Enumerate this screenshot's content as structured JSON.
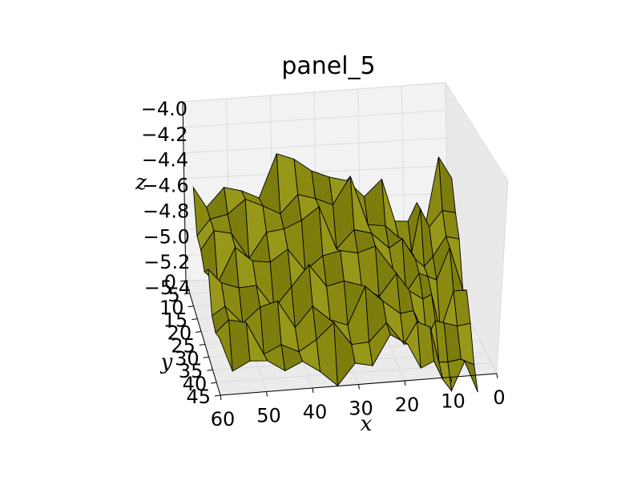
{
  "chart_data": {
    "type": "surface",
    "title": "panel_5",
    "xlabel": "x",
    "ylabel": "y",
    "zlabel": "z",
    "x_ticks": [
      "0",
      "10",
      "20",
      "30",
      "40",
      "50",
      "60"
    ],
    "y_ticks": [
      "0",
      "5",
      "10",
      "15",
      "20",
      "25",
      "30",
      "35",
      "40",
      "45"
    ],
    "z_ticks": [
      "−4.0",
      "−4.2",
      "−4.4",
      "−4.6",
      "−4.8",
      "−5.0",
      "−5.2",
      "−5.4"
    ],
    "xlim": [
      0,
      60
    ],
    "ylim": [
      0,
      45
    ],
    "zlim": [
      -5.4,
      -4.0
    ],
    "grid": true,
    "surface_color": "#8a8a12",
    "edge_color": "#000000",
    "surface_profile": {
      "x": [
        0,
        3,
        6,
        8,
        10,
        13,
        16,
        20,
        24,
        28,
        32,
        36,
        40,
        44,
        48,
        52,
        56,
        59
      ],
      "z_back": [
        -4.62,
        -4.48,
        -4.78,
        -4.72,
        -4.88,
        -4.85,
        -4.7,
        -4.66,
        -4.46,
        -4.55,
        -4.4,
        -4.46,
        -4.45,
        -4.58,
        -4.62,
        -4.55,
        -4.7,
        -4.75
      ],
      "z_front": [
        -5.5,
        -5.46,
        -5.52,
        -5.42,
        -5.3,
        -5.22,
        -5.24,
        -5.18,
        -5.28,
        -5.35,
        -5.38,
        -5.3,
        -5.42,
        -5.35,
        -5.3,
        -5.28,
        -5.2,
        -5.15
      ]
    }
  }
}
